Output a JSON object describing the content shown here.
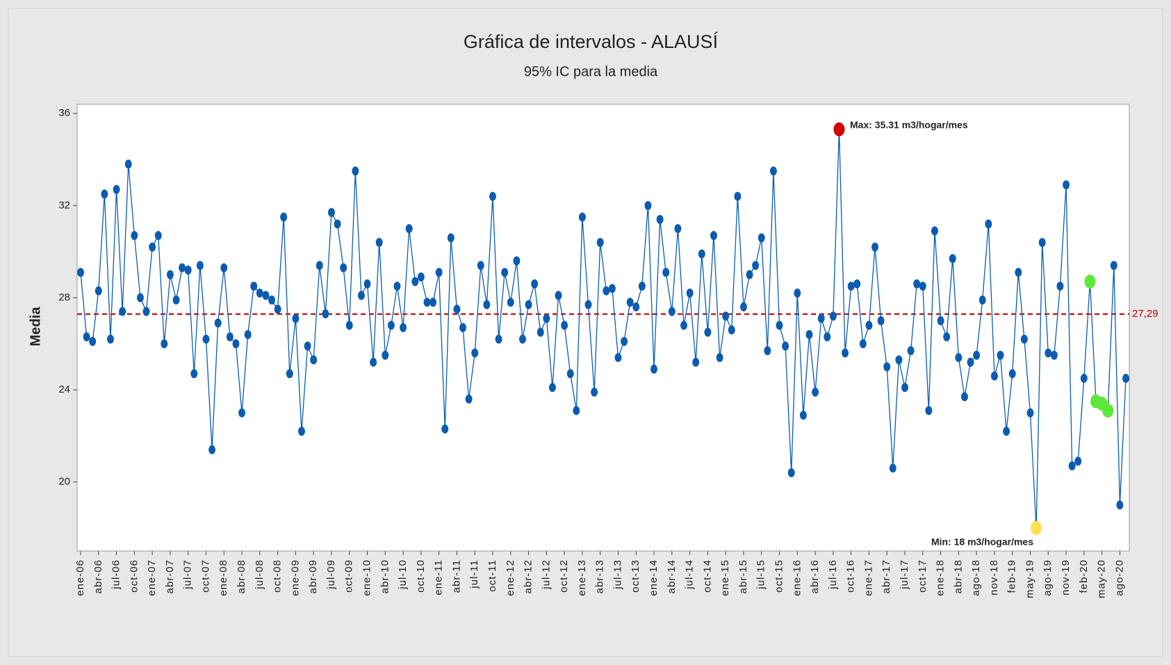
{
  "chart_data": {
    "type": "line",
    "title": "Gráfica de intervalos - ALAUSÍ",
    "subtitle": "95% IC para la media",
    "y_label": "Media",
    "categories": [
      "ene-06",
      null,
      null,
      "abr-06",
      null,
      null,
      "jul-06",
      null,
      null,
      "oct-06",
      null,
      null,
      "ene-07",
      null,
      null,
      "abr-07",
      null,
      null,
      "jul-07",
      null,
      null,
      "oct-07",
      null,
      null,
      "ene-08",
      null,
      null,
      "abr-08",
      null,
      null,
      "jul-08",
      null,
      null,
      "oct-08",
      null,
      null,
      "ene-09",
      null,
      null,
      "abr-09",
      null,
      null,
      "jul-09",
      null,
      null,
      "oct-09",
      null,
      null,
      "ene-10",
      null,
      null,
      "abr-10",
      null,
      null,
      "jul-10",
      null,
      null,
      "oct-10",
      null,
      null,
      "ene-11",
      null,
      null,
      "abr-11",
      null,
      null,
      "jul-11",
      null,
      null,
      "oct-11",
      null,
      null,
      "ene-12",
      null,
      null,
      "abr-12",
      null,
      null,
      "jul-12",
      null,
      null,
      "oct-12",
      null,
      null,
      "ene-13",
      null,
      null,
      "abr-13",
      null,
      null,
      "jul-13",
      null,
      null,
      "oct-13",
      null,
      null,
      "ene-14",
      null,
      null,
      "abr-14",
      null,
      null,
      "jul-14",
      null,
      null,
      "oct-14",
      null,
      null,
      "ene-15",
      null,
      null,
      "abr-15",
      null,
      null,
      "jul-15",
      null,
      null,
      "oct-15",
      null,
      null,
      "ene-16",
      null,
      null,
      "abr-16",
      null,
      null,
      "jul-16",
      null,
      null,
      "oct-16",
      null,
      null,
      "ene-17",
      null,
      null,
      "abr-17",
      null,
      null,
      "jul-17",
      null,
      null,
      "oct-17",
      null,
      null,
      "ene-18",
      null,
      null,
      "abr-18",
      null,
      null,
      "ago-18",
      null,
      null,
      "nov-18",
      null,
      null,
      "feb-19",
      null,
      null,
      "may-19",
      null,
      null,
      "ago-19",
      null,
      null,
      "nov-19",
      null,
      null,
      "feb-20",
      null,
      null,
      "may-20",
      null,
      null,
      "ago-20",
      null
    ],
    "values": [
      29.1,
      26.3,
      26.1,
      28.3,
      32.5,
      26.2,
      32.7,
      27.4,
      33.8,
      30.7,
      28.0,
      27.4,
      30.2,
      30.7,
      26.0,
      29.0,
      27.9,
      29.3,
      29.2,
      24.7,
      29.4,
      26.2,
      21.4,
      26.9,
      29.3,
      26.3,
      26.0,
      23.0,
      26.4,
      28.5,
      28.2,
      28.1,
      27.9,
      27.5,
      31.5,
      24.7,
      27.1,
      22.2,
      25.9,
      25.3,
      29.4,
      27.3,
      31.7,
      31.2,
      29.3,
      26.8,
      33.5,
      28.1,
      28.6,
      25.2,
      30.4,
      25.5,
      26.8,
      28.5,
      26.7,
      31.0,
      28.7,
      28.9,
      27.8,
      27.8,
      29.1,
      22.3,
      30.6,
      27.5,
      26.7,
      23.6,
      25.6,
      29.4,
      27.7,
      32.4,
      26.2,
      29.1,
      27.8,
      29.6,
      26.2,
      27.7,
      28.6,
      26.5,
      27.1,
      24.1,
      28.1,
      26.8,
      24.7,
      23.1,
      31.5,
      27.7,
      23.9,
      30.4,
      28.3,
      28.4,
      25.4,
      26.1,
      27.8,
      27.6,
      28.5,
      32.0,
      24.9,
      31.4,
      29.1,
      27.4,
      31.0,
      26.8,
      28.2,
      25.2,
      29.9,
      26.5,
      30.7,
      25.4,
      27.2,
      26.6,
      32.4,
      27.6,
      29.0,
      29.4,
      30.6,
      25.7,
      33.5,
      26.8,
      25.9,
      20.4,
      28.2,
      22.9,
      26.4,
      23.9,
      27.1,
      26.3,
      27.2,
      35.31,
      25.6,
      28.5,
      28.6,
      26.0,
      26.8,
      30.2,
      27.0,
      25.0,
      20.6,
      25.3,
      24.1,
      25.7,
      28.6,
      28.5,
      23.1,
      30.9,
      27.0,
      26.3,
      29.7,
      25.4,
      23.7,
      25.2,
      25.5,
      27.9,
      31.2,
      24.6,
      25.5,
      22.2,
      24.7,
      29.1,
      26.2,
      23.0,
      18,
      30.4,
      25.6,
      25.5,
      28.5,
      32.9,
      20.7,
      20.9,
      24.5,
      28.7,
      23.5,
      23.4,
      23.1,
      29.4,
      19.0,
      24.5
    ],
    "color": "#0b5cb0",
    "marker_colors": [
      "#0b5cb0",
      "#0b5cb0",
      "#0b5cb0",
      "#0b5cb0",
      "#0b5cb0",
      "#0b5cb0",
      "#0b5cb0",
      "#0b5cb0",
      "#0b5cb0",
      "#0b5cb0",
      "#0b5cb0",
      "#0b5cb0",
      "#0b5cb0",
      "#0b5cb0",
      "#0b5cb0",
      "#0b5cb0",
      "#0b5cb0",
      "#0b5cb0",
      "#0b5cb0",
      "#0b5cb0",
      "#0b5cb0",
      "#0b5cb0",
      "#0b5cb0",
      "#0b5cb0",
      "#0b5cb0",
      "#0b5cb0",
      "#0b5cb0",
      "#0b5cb0",
      "#0b5cb0",
      "#0b5cb0",
      "#0b5cb0",
      "#0b5cb0",
      "#0b5cb0",
      "#0b5cb0",
      "#0b5cb0",
      "#0b5cb0",
      "#0b5cb0",
      "#0b5cb0",
      "#0b5cb0",
      "#0b5cb0",
      "#0b5cb0",
      "#0b5cb0",
      "#0b5cb0",
      "#0b5cb0",
      "#0b5cb0",
      "#0b5cb0",
      "#0b5cb0",
      "#0b5cb0",
      "#0b5cb0",
      "#0b5cb0",
      "#0b5cb0",
      "#0b5cb0",
      "#0b5cb0",
      "#0b5cb0",
      "#0b5cb0",
      "#0b5cb0",
      "#0b5cb0",
      "#0b5cb0",
      "#0b5cb0",
      "#0b5cb0",
      "#0b5cb0",
      "#0b5cb0",
      "#0b5cb0",
      "#0b5cb0",
      "#0b5cb0",
      "#0b5cb0",
      "#0b5cb0",
      "#0b5cb0",
      "#0b5cb0",
      "#0b5cb0",
      "#0b5cb0",
      "#0b5cb0",
      "#0b5cb0",
      "#0b5cb0",
      "#0b5cb0",
      "#0b5cb0",
      "#0b5cb0",
      "#0b5cb0",
      "#0b5cb0",
      "#0b5cb0",
      "#0b5cb0",
      "#0b5cb0",
      "#0b5cb0",
      "#0b5cb0",
      "#0b5cb0",
      "#0b5cb0",
      "#0b5cb0",
      "#0b5cb0",
      "#0b5cb0",
      "#0b5cb0",
      "#0b5cb0",
      "#0b5cb0",
      "#0b5cb0",
      "#0b5cb0",
      "#0b5cb0",
      "#0b5cb0",
      "#0b5cb0",
      "#0b5cb0",
      "#0b5cb0",
      "#0b5cb0",
      "#0b5cb0",
      "#0b5cb0",
      "#0b5cb0",
      "#0b5cb0",
      "#0b5cb0",
      "#0b5cb0",
      "#0b5cb0",
      "#0b5cb0",
      "#0b5cb0",
      "#0b5cb0",
      "#0b5cb0",
      "#0b5cb0",
      "#0b5cb0",
      "#0b5cb0",
      "#0b5cb0",
      "#0b5cb0",
      "#0b5cb0",
      "#0b5cb0",
      "#0b5cb0",
      "#0b5cb0",
      "#0b5cb0",
      "#0b5cb0",
      "#0b5cb0",
      "#0b5cb0",
      "#0b5cb0",
      "#0b5cb0",
      "#0b5cb0",
      "#d40000",
      "#0b5cb0",
      "#0b5cb0",
      "#0b5cb0",
      "#0b5cb0",
      "#0b5cb0",
      "#0b5cb0",
      "#0b5cb0",
      "#0b5cb0",
      "#0b5cb0",
      "#0b5cb0",
      "#0b5cb0",
      "#0b5cb0",
      "#0b5cb0",
      "#0b5cb0",
      "#0b5cb0",
      "#0b5cb0",
      "#0b5cb0",
      "#0b5cb0",
      "#0b5cb0",
      "#0b5cb0",
      "#0b5cb0",
      "#0b5cb0",
      "#0b5cb0",
      "#0b5cb0",
      "#0b5cb0",
      "#0b5cb0",
      "#0b5cb0",
      "#0b5cb0",
      "#0b5cb0",
      "#0b5cb0",
      "#0b5cb0",
      "#0b5cb0",
      "#ffe14d",
      "#0b5cb0",
      "#0b5cb0",
      "#0b5cb0",
      "#0b5cb0",
      "#0b5cb0",
      "#0b5cb0",
      "#0b5cb0",
      "#0b5cb0",
      "#5ee83a",
      "#5ee83a",
      "#5ee83a",
      "#5ee83a",
      "#0b5cb0",
      "#0b5cb0",
      "#0b5cb0"
    ],
    "reference_line": {
      "value": 27.29,
      "label": "27,29",
      "color": "#c00000"
    },
    "annotations": [
      "Max: 35.31 m3/hogar/mes",
      "Min: 18 m3/hogar/mes"
    ],
    "ylim": [
      17.0,
      36.4
    ],
    "yticks": [
      20,
      24,
      28,
      32,
      36
    ],
    "grid": false
  }
}
